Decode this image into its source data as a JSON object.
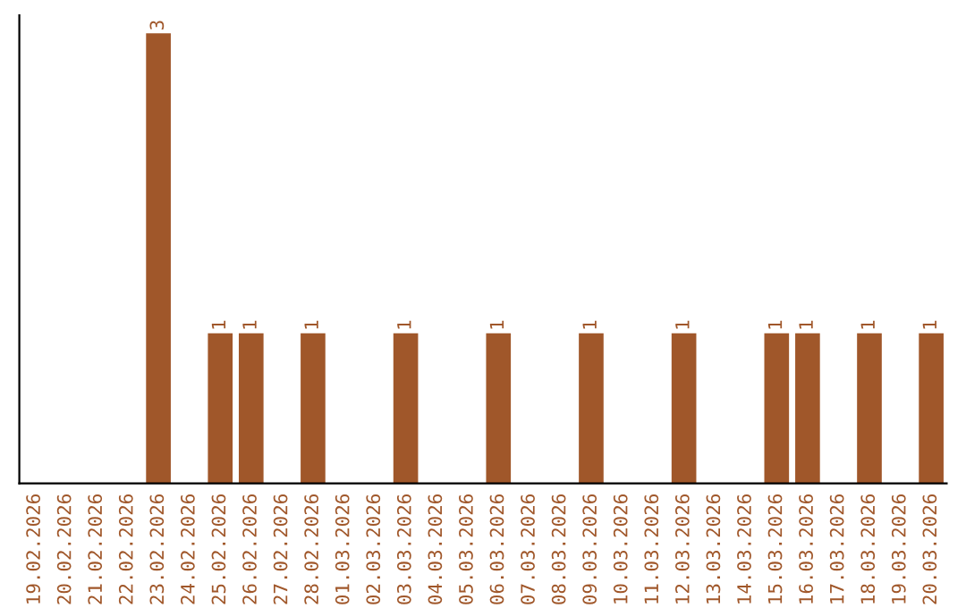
{
  "chart_data": {
    "type": "bar",
    "categories": [
      "19.02.2026",
      "20.02.2026",
      "21.02.2026",
      "22.02.2026",
      "23.02.2026",
      "24.02.2026",
      "25.02.2026",
      "26.02.2026",
      "27.02.2026",
      "28.02.2026",
      "01.03.2026",
      "02.03.2026",
      "03.03.2026",
      "04.03.2026",
      "05.03.2026",
      "06.03.2026",
      "07.03.2026",
      "08.03.2026",
      "09.03.2026",
      "10.03.2026",
      "11.03.2026",
      "12.03.2026",
      "13.03.2026",
      "14.03.2026",
      "15.03.2026",
      "16.03.2026",
      "17.03.2026",
      "18.03.2026",
      "19.03.2026",
      "20.03.2026"
    ],
    "values": [
      0,
      0,
      0,
      0,
      3,
      0,
      1,
      1,
      0,
      1,
      0,
      0,
      1,
      0,
      0,
      1,
      0,
      0,
      1,
      0,
      0,
      1,
      0,
      0,
      1,
      1,
      0,
      1,
      0,
      1
    ],
    "value_labels": [
      null,
      null,
      null,
      null,
      "3",
      null,
      "1",
      "1",
      null,
      "1",
      null,
      null,
      "1",
      null,
      null,
      "1",
      null,
      null,
      "1",
      null,
      null,
      "1",
      null,
      null,
      "1",
      "1",
      null,
      "1",
      null,
      "1"
    ],
    "color": "#a0572a",
    "tick_labels": "x",
    "grid": false,
    "legend": false
  }
}
